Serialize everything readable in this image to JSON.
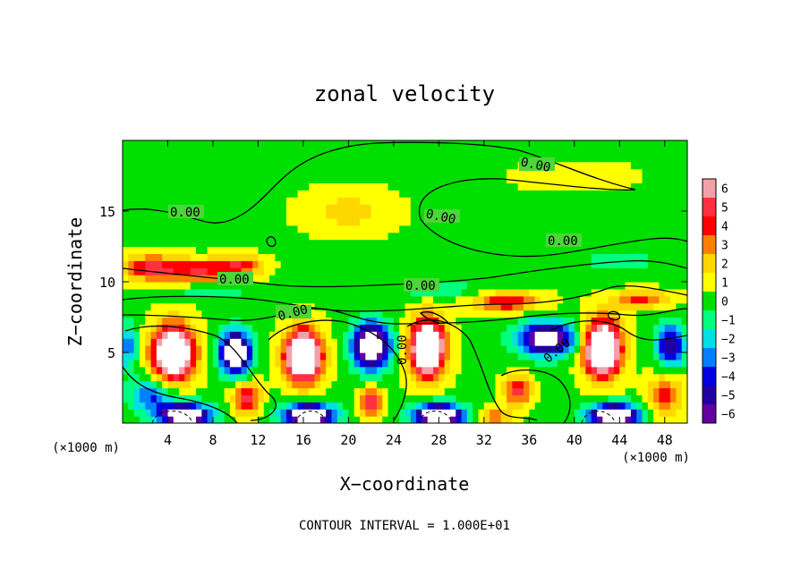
{
  "chart_data": {
    "type": "heatmap",
    "title": "zonal velocity",
    "xlabel": "X−coordinate",
    "ylabel": "Z−coordinate",
    "x_unit_left": "(×1000 m)",
    "x_unit_right": "(×1000 m)",
    "footer": "CONTOUR INTERVAL = 1.000E+01",
    "xlim": [
      0,
      50
    ],
    "ylim": [
      0,
      20
    ],
    "x_ticks": [
      4,
      8,
      12,
      16,
      20,
      24,
      28,
      32,
      36,
      40,
      44,
      48
    ],
    "x_tick_labels": [
      "4",
      "8",
      "12",
      "16",
      "20",
      "24",
      "28",
      "32",
      "36",
      "40",
      "44",
      "48"
    ],
    "y_ticks": [
      5,
      10,
      15
    ],
    "y_tick_labels": [
      "5",
      "10",
      "15"
    ],
    "colorbar": {
      "min": -6,
      "max": 6,
      "levels": [
        6,
        5,
        4,
        3,
        2,
        1,
        0,
        -1,
        -2,
        -3,
        -4,
        -5,
        -6
      ],
      "labels": [
        "6",
        "5",
        "4",
        "3",
        "2",
        "1",
        "0",
        "−1",
        "−2",
        "−3",
        "−4",
        "−5",
        "−6"
      ],
      "colors": [
        "#f4a0a8",
        "#ff3040",
        "#ff0000",
        "#ff8000",
        "#ffd700",
        "#ffff00",
        "#00e000",
        "#00ff80",
        "#00e0e0",
        "#0080ff",
        "#0000e0",
        "#2000a0",
        "#6000a0"
      ]
    },
    "contour_labels": [
      "0.00",
      "0.00",
      "0.00",
      "0.00",
      "0.00",
      "0.00",
      "0.00",
      "0.00",
      "0.00"
    ],
    "field": {
      "background": 0.3,
      "blobs": [
        {
          "x": 2.5,
          "y": 11.0,
          "sx": 2.5,
          "sy": 0.9,
          "v": 4.5
        },
        {
          "x": 7.0,
          "y": 10.8,
          "sx": 3.0,
          "sy": 0.8,
          "v": 4.0
        },
        {
          "x": 10.5,
          "y": 11.2,
          "sx": 2.0,
          "sy": 0.7,
          "v": 3.5
        },
        {
          "x": 20.0,
          "y": 15.0,
          "sx": 4.0,
          "sy": 1.5,
          "v": 1.6
        },
        {
          "x": 40.0,
          "y": 17.5,
          "sx": 5.0,
          "sy": 1.0,
          "v": 0.9
        },
        {
          "x": 44.0,
          "y": 11.5,
          "sx": 3.0,
          "sy": 0.8,
          "v": -1.8
        },
        {
          "x": 28.0,
          "y": 9.5,
          "sx": 4.0,
          "sy": 0.6,
          "v": -1.6
        },
        {
          "x": 8.0,
          "y": 9.3,
          "sx": 3.0,
          "sy": 0.5,
          "v": -1.8
        },
        {
          "x": 34.0,
          "y": 8.6,
          "sx": 3.0,
          "sy": 0.7,
          "v": 4.2
        },
        {
          "x": 46.0,
          "y": 8.8,
          "sx": 2.5,
          "sy": 0.6,
          "v": 3.5
        },
        {
          "x": 4.5,
          "y": 5.0,
          "sx": 1.8,
          "sy": 1.9,
          "v": 11.0
        },
        {
          "x": 16.0,
          "y": 4.8,
          "sx": 1.6,
          "sy": 1.8,
          "v": 11.0
        },
        {
          "x": 27.0,
          "y": 5.3,
          "sx": 1.5,
          "sy": 2.0,
          "v": 11.0
        },
        {
          "x": 42.5,
          "y": 5.3,
          "sx": 1.6,
          "sy": 2.0,
          "v": 11.0
        },
        {
          "x": 10.0,
          "y": 5.0,
          "sx": 1.3,
          "sy": 1.5,
          "v": -10.0
        },
        {
          "x": 22.0,
          "y": 5.5,
          "sx": 1.6,
          "sy": 1.6,
          "v": -10.0
        },
        {
          "x": 37.5,
          "y": 6.0,
          "sx": 2.5,
          "sy": 1.2,
          "v": -8.0
        },
        {
          "x": 48.5,
          "y": 5.5,
          "sx": 1.2,
          "sy": 1.5,
          "v": -6.0
        },
        {
          "x": 2.5,
          "y": 2.0,
          "sx": 2.0,
          "sy": 1.2,
          "v": -4.0
        },
        {
          "x": 5.5,
          "y": 0.6,
          "sx": 2.2,
          "sy": 0.8,
          "v": -10.0
        },
        {
          "x": 16.5,
          "y": 0.6,
          "sx": 2.2,
          "sy": 0.8,
          "v": -10.0
        },
        {
          "x": 28.0,
          "y": 0.6,
          "sx": 2.2,
          "sy": 0.8,
          "v": -10.0
        },
        {
          "x": 43.5,
          "y": 0.6,
          "sx": 2.2,
          "sy": 0.8,
          "v": -10.0
        },
        {
          "x": 11.0,
          "y": 1.8,
          "sx": 1.2,
          "sy": 1.2,
          "v": 4.5
        },
        {
          "x": 22.0,
          "y": 1.5,
          "sx": 1.0,
          "sy": 1.0,
          "v": 5.0
        },
        {
          "x": 35.0,
          "y": 2.3,
          "sx": 1.2,
          "sy": 1.0,
          "v": 4.5
        },
        {
          "x": 33.0,
          "y": 0.5,
          "sx": 1.5,
          "sy": 0.6,
          "v": 3.0
        },
        {
          "x": 48.0,
          "y": 2.0,
          "sx": 1.5,
          "sy": 1.5,
          "v": 3.5
        },
        {
          "x": 0.5,
          "y": 5.5,
          "sx": 0.8,
          "sy": 1.5,
          "v": -4.0
        }
      ]
    }
  }
}
